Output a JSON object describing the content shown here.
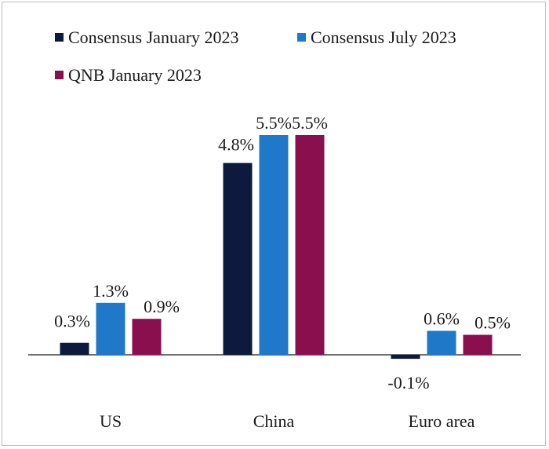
{
  "chart_data": {
    "type": "bar",
    "categories": [
      "US",
      "China",
      "Euro area"
    ],
    "series": [
      {
        "name": "Consensus January 2023",
        "color": "#0d1a3d",
        "values": [
          0.3,
          4.8,
          -0.1
        ],
        "labels": [
          "0.3%",
          "4.8%",
          "-0.1%"
        ]
      },
      {
        "name": "Consensus July 2023",
        "color": "#1f78c8",
        "values": [
          1.3,
          5.5,
          0.6
        ],
        "labels": [
          "1.3%",
          "5.5%",
          "0.6%"
        ]
      },
      {
        "name": "QNB January 2023",
        "color": "#8a0f4f",
        "values": [
          0.9,
          5.5,
          0.5
        ],
        "labels": [
          "0.9%",
          "5.5%",
          "0.5%"
        ]
      }
    ],
    "legend_position": "top-left",
    "grid": false
  }
}
